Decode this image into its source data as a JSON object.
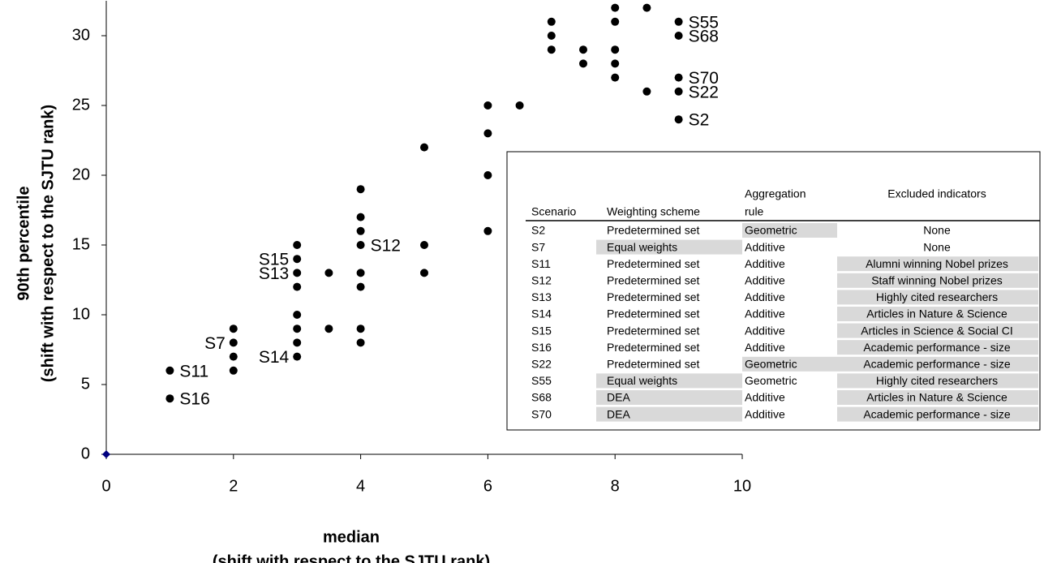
{
  "chart_data": {
    "type": "scatter",
    "xlabel": [
      "median",
      "(shift with respect to the SJTU rank)"
    ],
    "ylabel": [
      "90th percentile",
      "(shift with respect to the SJTU rank)"
    ],
    "xlim": [
      0,
      10
    ],
    "xticks": [
      0,
      2,
      4,
      6,
      8,
      10
    ],
    "ylim": [
      0,
      32.5
    ],
    "yticks": [
      0,
      5,
      10,
      15,
      20,
      25,
      30
    ],
    "series": [
      {
        "color": "#000000",
        "marker": "circle",
        "x": [
          9,
          9,
          9,
          9,
          9,
          8.5,
          8.5,
          8,
          8,
          8,
          8,
          8,
          7.5,
          7.5,
          7,
          7,
          7,
          6.5,
          6,
          6,
          6,
          6,
          5,
          5,
          5,
          4,
          4,
          4,
          4,
          4,
          4,
          4,
          4,
          3.5,
          3.5,
          3,
          3,
          3,
          3,
          3,
          3,
          3,
          3,
          2,
          2,
          2,
          2,
          1,
          1
        ],
        "y": [
          31,
          30,
          27,
          26,
          24,
          32,
          26,
          32,
          31,
          29,
          28,
          27,
          29,
          28,
          31,
          30,
          29,
          25,
          25,
          23,
          20,
          16,
          22,
          15,
          13,
          19,
          17,
          16,
          15,
          13,
          12,
          9,
          8,
          13,
          9,
          15,
          14,
          13,
          12,
          10,
          9,
          8,
          7,
          9,
          8,
          7,
          6,
          6,
          4
        ]
      },
      {
        "color": "#000080",
        "marker": "diamond",
        "x": [
          0
        ],
        "y": [
          0
        ]
      }
    ],
    "annotations": [
      {
        "text": "S55",
        "x": 9,
        "y": 31
      },
      {
        "text": "S68",
        "x": 9,
        "y": 30
      },
      {
        "text": "S70",
        "x": 9,
        "y": 27
      },
      {
        "text": "S22",
        "x": 9,
        "y": 26
      },
      {
        "text": "S2",
        "x": 9,
        "y": 24
      },
      {
        "text": "S12",
        "x": 4,
        "y": 15
      },
      {
        "text": "S15",
        "x": 3,
        "y": 14
      },
      {
        "text": "S13",
        "x": 3,
        "y": 13
      },
      {
        "text": "S14",
        "x": 3,
        "y": 7
      },
      {
        "text": "S7",
        "x": 2,
        "y": 8
      },
      {
        "text": "S11",
        "x": 1,
        "y": 6
      },
      {
        "text": "S16",
        "x": 1,
        "y": 4
      }
    ]
  },
  "table": {
    "header": [
      "Scenario",
      "Weighting scheme",
      [
        "Aggregation",
        "rule"
      ],
      "Excluded indicators"
    ],
    "rows": [
      [
        "S2",
        "Predetermined set",
        "Geometric",
        "None"
      ],
      [
        "S7",
        "Equal weights",
        "Additive",
        "None"
      ],
      [
        "S11",
        "Predetermined set",
        "Additive",
        "Alumni winning Nobel prizes"
      ],
      [
        "S12",
        "Predetermined set",
        "Additive",
        "Staff winning Nobel prizes"
      ],
      [
        "S13",
        "Predetermined set",
        "Additive",
        "Highly cited researchers"
      ],
      [
        "S14",
        "Predetermined set",
        "Additive",
        "Articles in Nature & Science"
      ],
      [
        "S15",
        "Predetermined set",
        "Additive",
        "Articles in Science & Social CI"
      ],
      [
        "S16",
        "Predetermined set",
        "Additive",
        "Academic performance - size"
      ],
      [
        "S22",
        "Predetermined set",
        "Geometric",
        "Academic performance - size"
      ],
      [
        "S55",
        "Equal weights",
        "Geometric",
        "Highly cited researchers"
      ],
      [
        "S68",
        "DEA",
        "Additive",
        "Articles in Nature & Science"
      ],
      [
        "S70",
        "DEA",
        "Additive",
        "Academic performance - size"
      ]
    ],
    "shaded": [
      [
        false,
        false,
        true,
        false
      ],
      [
        false,
        true,
        false,
        false
      ],
      [
        false,
        false,
        false,
        true
      ],
      [
        false,
        false,
        false,
        true
      ],
      [
        false,
        false,
        false,
        true
      ],
      [
        false,
        false,
        false,
        true
      ],
      [
        false,
        false,
        false,
        true
      ],
      [
        false,
        false,
        false,
        true
      ],
      [
        false,
        false,
        true,
        true
      ],
      [
        false,
        true,
        false,
        true
      ],
      [
        false,
        true,
        false,
        true
      ],
      [
        false,
        true,
        false,
        true
      ]
    ]
  }
}
